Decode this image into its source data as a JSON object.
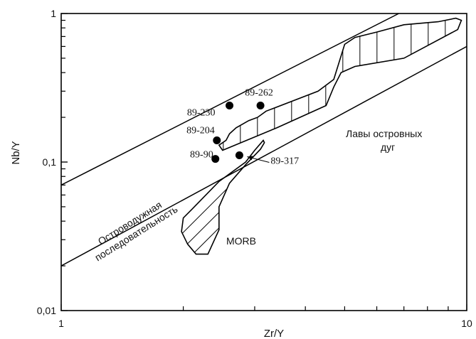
{
  "chart_data": {
    "type": "scatter",
    "xlabel": "Zr/Y",
    "ylabel": "Nb/Y",
    "x_scale": "log",
    "y_scale": "log",
    "xlim": [
      1,
      10
    ],
    "ylim": [
      0.01,
      1
    ],
    "x_tick_labels": [
      "1",
      "10"
    ],
    "y_tick_labels": [
      "0,01",
      "0,1",
      "1"
    ],
    "grid": false,
    "points": [
      {
        "label": "89-262",
        "x": 3.1,
        "y": 0.24
      },
      {
        "label": "89-230",
        "x": 2.6,
        "y": 0.24
      },
      {
        "label": "89-204",
        "x": 2.42,
        "y": 0.14
      },
      {
        "label": "89-90",
        "x": 2.4,
        "y": 0.105
      },
      {
        "label": "89-317",
        "x": 2.75,
        "y": 0.111
      }
    ],
    "lines": [
      {
        "from": [
          1,
          0.07
        ],
        "to": [
          6.8,
          1
        ]
      },
      {
        "from": [
          1,
          0.02
        ],
        "to": [
          10,
          0.6
        ]
      }
    ],
    "fields": [
      {
        "label": "Лавы островных дуг",
        "hatch": "vertical",
        "outline": [
          [
            2.55,
            0.14
          ],
          [
            2.45,
            0.13
          ],
          [
            2.5,
            0.12
          ],
          [
            3.4,
            0.17
          ],
          [
            4.5,
            0.24
          ],
          [
            4.7,
            0.32
          ],
          [
            4.9,
            0.4
          ],
          [
            5.3,
            0.44
          ],
          [
            7.0,
            0.5
          ],
          [
            9.5,
            0.78
          ],
          [
            9.7,
            0.9
          ],
          [
            9.4,
            0.93
          ],
          [
            8.5,
            0.88
          ],
          [
            7.0,
            0.84
          ],
          [
            6.0,
            0.75
          ],
          [
            5.3,
            0.69
          ],
          [
            5.0,
            0.62
          ],
          [
            4.7,
            0.36
          ],
          [
            4.3,
            0.3
          ],
          [
            3.2,
            0.22
          ],
          [
            3.05,
            0.2
          ],
          [
            2.9,
            0.19
          ],
          [
            2.8,
            0.18
          ],
          [
            2.7,
            0.17
          ],
          [
            2.6,
            0.155
          ]
        ]
      },
      {
        "label": "MORB",
        "hatch": "diagonal",
        "outline": [
          [
            3.15,
            0.14
          ],
          [
            3.17,
            0.135
          ],
          [
            3.1,
            0.122
          ],
          [
            2.85,
            0.096
          ],
          [
            2.6,
            0.072
          ],
          [
            2.45,
            0.05
          ],
          [
            2.45,
            0.035
          ],
          [
            2.3,
            0.024
          ],
          [
            2.15,
            0.024
          ],
          [
            2.05,
            0.028
          ],
          [
            1.98,
            0.034
          ],
          [
            2.0,
            0.042
          ],
          [
            2.1,
            0.048
          ],
          [
            2.45,
            0.074
          ],
          [
            2.85,
            0.1
          ],
          [
            3.0,
            0.12
          ]
        ]
      }
    ],
    "annotations": {
      "arc_band": "Островодужная\nпоследовательность",
      "arc_band_line1": "Островодужная",
      "arc_band_line2": "последовательность",
      "arc_lavas": "Лавы островных\nдуг",
      "arc_lavas_line1": "Лавы островных",
      "arc_lavas_line2": "дуг",
      "morb": "MORB"
    }
  }
}
